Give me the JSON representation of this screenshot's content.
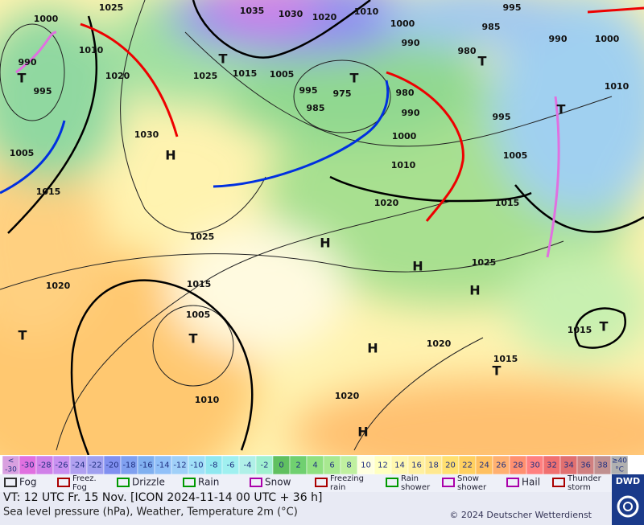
{
  "map": {
    "pressure_labels": [
      "1025",
      "1035",
      "1030",
      "1020",
      "1010",
      "995",
      "1000",
      "1000",
      "990",
      "985",
      "990",
      "1000",
      "1010",
      "980",
      "990",
      "1020",
      "1025",
      "1015",
      "1005",
      "995",
      "975",
      "1010",
      "995",
      "985",
      "980",
      "990",
      "995",
      "1030",
      "1000",
      "1005",
      "1005",
      "1010",
      "1015",
      "1020",
      "1015",
      "1025",
      "1025",
      "1020",
      "1015",
      "1005",
      "1015",
      "1020",
      "1015",
      "1010",
      "1020"
    ],
    "centers": [
      "T",
      "T",
      "T",
      "T",
      "T",
      "H",
      "H",
      "H",
      "H",
      "T",
      "T",
      "T",
      "H",
      "T",
      "H"
    ]
  },
  "scale": {
    "first": [
      "<",
      "-30"
    ],
    "values": [
      -30,
      -28,
      -26,
      -24,
      -22,
      -20,
      -18,
      -16,
      -14,
      -12,
      -10,
      -8,
      -6,
      -4,
      -2,
      0,
      2,
      4,
      6,
      8,
      10,
      12,
      14,
      16,
      18,
      20,
      22,
      24,
      26,
      28,
      30,
      32,
      34,
      36,
      38
    ],
    "last": [
      "≥40",
      "°C"
    ],
    "colors": [
      "#d9a0e0",
      "#e070e0",
      "#d080e8",
      "#c890f0",
      "#b0a0f0",
      "#a0a0f0",
      "#8090f0",
      "#80a0f0",
      "#80b0f0",
      "#90c0f8",
      "#a0d0f8",
      "#a0e0f8",
      "#90e8f0",
      "#a0f0f0",
      "#b0f0e8",
      "#a0f0d0",
      "#60c060",
      "#70d070",
      "#90e080",
      "#a8e890",
      "#c0f0a0",
      "#ffffe0",
      "#ffffc0",
      "#fff8b0",
      "#fff0a0",
      "#ffe890",
      "#ffe070",
      "#ffd060",
      "#ffc060",
      "#ffb070",
      "#ff9070",
      "#ff8080",
      "#f07070",
      "#e07070",
      "#d08080",
      "#c09090",
      "#b0b0b0"
    ]
  },
  "weather_legend": [
    [
      "Fog"
    ],
    [
      "Freez.",
      "Fog"
    ],
    [
      "Drizzle"
    ],
    [
      "Rain"
    ],
    [
      "Snow"
    ],
    [
      "Freezing",
      "rain"
    ],
    [
      "Rain",
      "shower"
    ],
    [
      "Snow",
      "shower"
    ],
    [
      "Hail"
    ],
    [
      "Thunder",
      "storm"
    ]
  ],
  "footer": {
    "valid_time": "VT: 12 UTC Fr.  15 Nov. [ICON 2024-11-14  00 UTC + 36 h]",
    "description": "Sea level pressure (hPa), Weather, Temperature 2m (°C)",
    "copyright": "© 2024 Deutscher Wetterdienst",
    "logo": "DWD"
  }
}
